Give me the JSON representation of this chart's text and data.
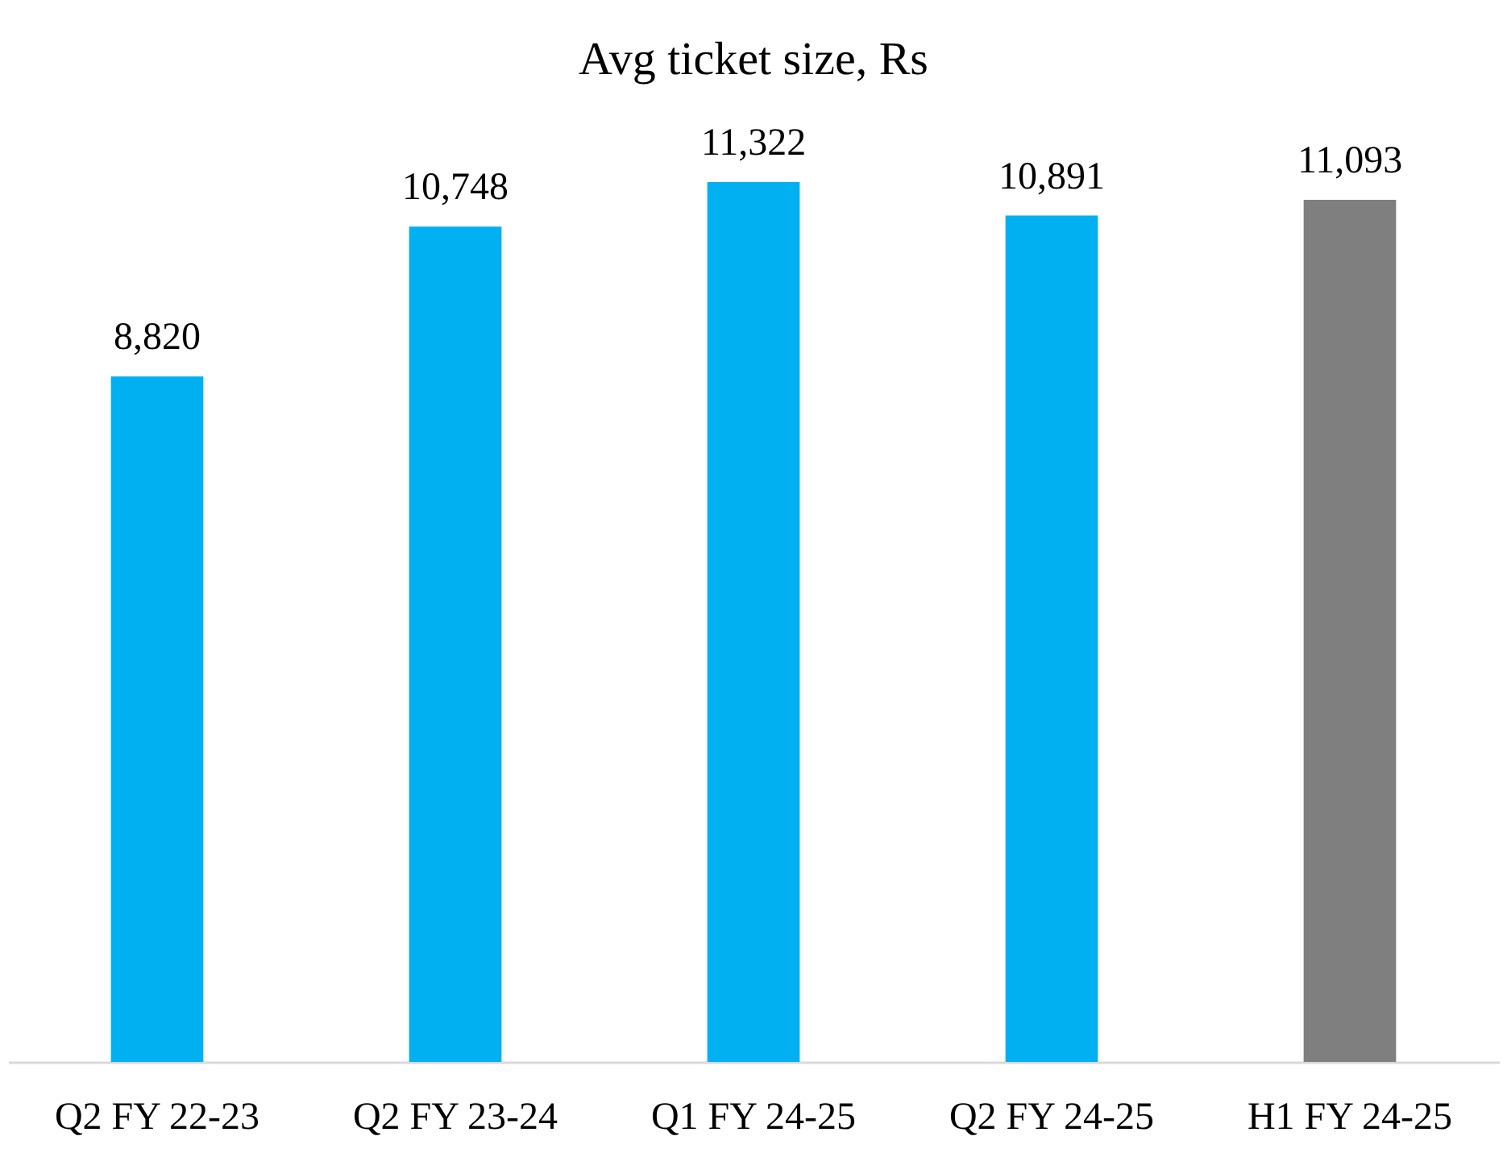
{
  "chart_data": {
    "type": "bar",
    "title": "Avg ticket size, Rs",
    "categories": [
      "Q2 FY 22-23",
      "Q2 FY 23-24",
      "Q1 FY 24-25",
      "Q2 FY 24-25",
      "H1 FY 24-25"
    ],
    "values": [
      8820,
      10748,
      11322,
      10891,
      11093
    ],
    "colors": [
      "#00b0f0",
      "#00b0f0",
      "#00b0f0",
      "#00b0f0",
      "#7f7f7f"
    ],
    "value_labels": [
      "8,820",
      "10,748",
      "11,322",
      "10,891",
      "11,093"
    ]
  }
}
